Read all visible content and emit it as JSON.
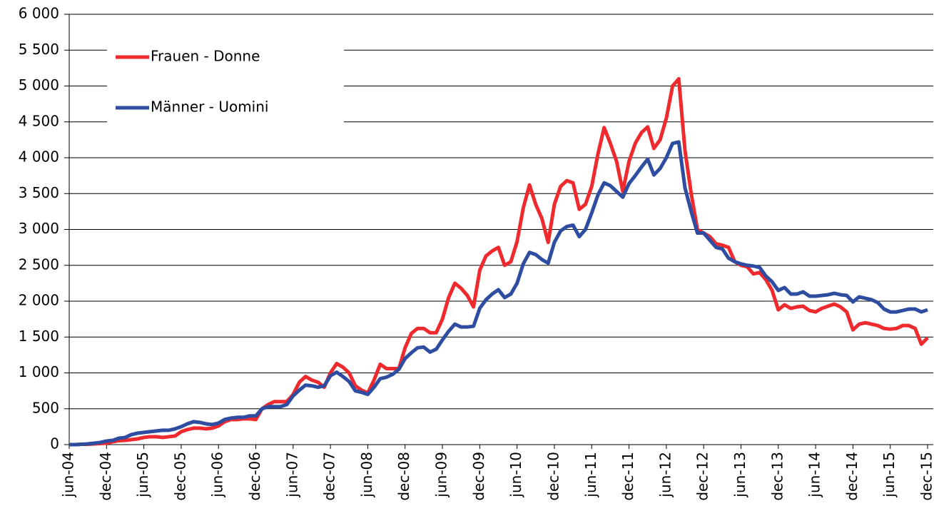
{
  "chart_data": {
    "type": "line",
    "categories": [
      "jun-04",
      null,
      null,
      null,
      null,
      null,
      "dec-04",
      null,
      null,
      null,
      null,
      null,
      "jun-05",
      null,
      null,
      null,
      null,
      null,
      "dec-05",
      null,
      null,
      null,
      null,
      null,
      "jun-06",
      null,
      null,
      null,
      null,
      null,
      "dec-06",
      null,
      null,
      null,
      null,
      null,
      "jun-07",
      null,
      null,
      null,
      null,
      null,
      "dec-07",
      null,
      null,
      null,
      null,
      null,
      "jun-08",
      null,
      null,
      null,
      null,
      null,
      "dec-08",
      null,
      null,
      null,
      null,
      null,
      "jun-09",
      null,
      null,
      null,
      null,
      null,
      "dec-09",
      null,
      null,
      null,
      null,
      null,
      "jun-10",
      null,
      null,
      null,
      null,
      null,
      "dec-10",
      null,
      null,
      null,
      null,
      null,
      "jun-11",
      null,
      null,
      null,
      null,
      null,
      "dec-11",
      null,
      null,
      null,
      null,
      null,
      "jun-12",
      null,
      null,
      null,
      null,
      null,
      "dec-12",
      null,
      null,
      null,
      null,
      null,
      "jun-13",
      null,
      null,
      null,
      null,
      null,
      "dec-13",
      null,
      null,
      null,
      null,
      null,
      "jun-14",
      null,
      null,
      null,
      null,
      null,
      "dec-14",
      null,
      null,
      null,
      null,
      null,
      "jun-15",
      null,
      null,
      null,
      null,
      null,
      "dec-15"
    ],
    "series": [
      {
        "name": "Frauen - Donne",
        "color": "#ee2a2e",
        "values": [
          0,
          0,
          5,
          5,
          10,
          15,
          20,
          40,
          55,
          60,
          70,
          80,
          100,
          110,
          110,
          100,
          110,
          120,
          180,
          210,
          230,
          230,
          220,
          230,
          260,
          320,
          350,
          350,
          360,
          360,
          350,
          500,
          560,
          600,
          600,
          600,
          700,
          870,
          950,
          900,
          870,
          800,
          1000,
          1130,
          1080,
          1000,
          820,
          760,
          720,
          900,
          1120,
          1060,
          1060,
          1060,
          1350,
          1550,
          1620,
          1620,
          1560,
          1560,
          1750,
          2050,
          2250,
          2180,
          2080,
          1920,
          2430,
          2630,
          2700,
          2750,
          2500,
          2550,
          2830,
          3300,
          3620,
          3350,
          3150,
          2820,
          3350,
          3600,
          3680,
          3650,
          3280,
          3350,
          3600,
          4050,
          4420,
          4200,
          3950,
          3530,
          3950,
          4200,
          4350,
          4430,
          4130,
          4250,
          4550,
          5000,
          5100,
          4100,
          3500,
          3000,
          2950,
          2900,
          2800,
          2780,
          2750,
          2550,
          2500,
          2480,
          2380,
          2400,
          2300,
          2150,
          1880,
          1950,
          1900,
          1920,
          1930,
          1870,
          1850,
          1900,
          1930,
          1960,
          1920,
          1850,
          1600,
          1680,
          1700,
          1680,
          1660,
          1620,
          1610,
          1620,
          1660,
          1660,
          1620,
          1400,
          1490
        ]
      },
      {
        "name": "Männer - Uomini",
        "color": "#2e4da0",
        "values": [
          0,
          0,
          5,
          10,
          20,
          30,
          50,
          60,
          90,
          100,
          140,
          160,
          170,
          180,
          190,
          200,
          200,
          220,
          250,
          290,
          320,
          310,
          290,
          280,
          300,
          350,
          370,
          380,
          380,
          400,
          400,
          500,
          530,
          530,
          530,
          560,
          680,
          760,
          830,
          820,
          800,
          820,
          960,
          1010,
          950,
          880,
          750,
          730,
          700,
          800,
          920,
          940,
          980,
          1050,
          1200,
          1280,
          1350,
          1360,
          1290,
          1330,
          1460,
          1580,
          1680,
          1640,
          1640,
          1650,
          1900,
          2020,
          2100,
          2160,
          2050,
          2100,
          2250,
          2520,
          2680,
          2650,
          2580,
          2530,
          2820,
          2980,
          3040,
          3060,
          2900,
          3000,
          3230,
          3480,
          3650,
          3610,
          3530,
          3450,
          3640,
          3750,
          3870,
          3980,
          3760,
          3850,
          4000,
          4200,
          4220,
          3580,
          3250,
          2950,
          2950,
          2850,
          2750,
          2730,
          2600,
          2550,
          2520,
          2500,
          2490,
          2470,
          2350,
          2270,
          2150,
          2190,
          2100,
          2100,
          2130,
          2070,
          2070,
          2080,
          2090,
          2110,
          2090,
          2080,
          1990,
          2060,
          2040,
          2020,
          1980,
          1890,
          1850,
          1850,
          1870,
          1890,
          1890,
          1850,
          1880
        ]
      }
    ],
    "ylim": [
      0,
      6000
    ],
    "yticks": [
      0,
      500,
      {
        "value": 1000,
        "label": "1 000"
      },
      {
        "value": 1500,
        "label": "1 500"
      },
      {
        "value": 2000,
        "label": "2 000"
      },
      {
        "value": 2500,
        "label": "2 500"
      },
      {
        "value": 3000,
        "label": "3 000"
      },
      {
        "value": 3500,
        "label": "3 500"
      },
      {
        "value": 4000,
        "label": "4 000"
      },
      {
        "value": 4500,
        "label": "4 500"
      },
      {
        "value": 5000,
        "label": "5 000"
      },
      {
        "value": 5500,
        "label": "5 500"
      },
      {
        "value": 6000,
        "label": "6 000"
      }
    ],
    "grid": true,
    "legend": "top-left"
  }
}
